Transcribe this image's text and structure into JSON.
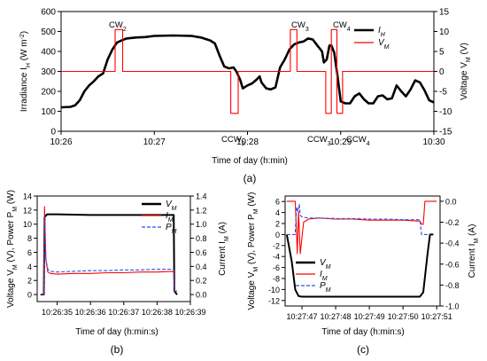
{
  "chart_data": [
    {
      "panel_label": "(a)",
      "type": "line",
      "xlabel": "Time of day (h:min)",
      "ylabel_left": [
        "Irradiance ",
        "I",
        "H",
        " (W m",
        "-2",
        ")"
      ],
      "ylabel_right": [
        "Voltage ",
        "V",
        "M",
        " (V)"
      ],
      "x_ticks": [
        "10:26",
        "10:27",
        "10:28",
        "10:29",
        "10:30"
      ],
      "x_tick_values": [
        0,
        1,
        2,
        3,
        4
      ],
      "xlim": [
        0,
        4
      ],
      "ylim_left": [
        0,
        600
      ],
      "y_left_ticks": [
        "0",
        "100",
        "200",
        "300",
        "400",
        "500",
        "600"
      ],
      "ylim_right": [
        -15,
        15
      ],
      "y_right_ticks": [
        "-15",
        "-10",
        "-5",
        "0",
        "5",
        "10",
        "15"
      ],
      "legend": {
        "position": "top-right",
        "entries": [
          {
            "main": "I",
            "sub": "H"
          },
          {
            "main": "V",
            "sub": "M"
          }
        ]
      },
      "annotations": [
        {
          "main": "CW",
          "sub": "2"
        },
        {
          "main": "CCW",
          "sub": "2"
        },
        {
          "main": "CW",
          "sub": "3"
        },
        {
          "main": "CCW",
          "sub": "3"
        },
        {
          "main": "CW",
          "sub": "4"
        },
        {
          "main": "CCW",
          "sub": "4"
        }
      ],
      "series": [
        {
          "name": "I_H",
          "color": "#000000",
          "axis": "left",
          "points": [
            [
              0.0,
              120
            ],
            [
              0.1,
              122
            ],
            [
              0.15,
              130
            ],
            [
              0.2,
              155
            ],
            [
              0.25,
              200
            ],
            [
              0.3,
              230
            ],
            [
              0.35,
              250
            ],
            [
              0.4,
              275
            ],
            [
              0.45,
              290
            ],
            [
              0.5,
              360
            ],
            [
              0.55,
              410
            ],
            [
              0.6,
              445
            ],
            [
              0.65,
              455
            ],
            [
              0.7,
              465
            ],
            [
              0.8,
              470
            ],
            [
              0.9,
              472
            ],
            [
              1.0,
              478
            ],
            [
              1.2,
              480
            ],
            [
              1.4,
              478
            ],
            [
              1.5,
              470
            ],
            [
              1.6,
              455
            ],
            [
              1.65,
              440
            ],
            [
              1.7,
              380
            ],
            [
              1.75,
              325
            ],
            [
              1.8,
              315
            ],
            [
              1.85,
              320
            ],
            [
              1.88,
              300
            ],
            [
              1.92,
              260
            ],
            [
              1.95,
              215
            ],
            [
              2.0,
              230
            ],
            [
              2.05,
              240
            ],
            [
              2.1,
              260
            ],
            [
              2.13,
              275
            ],
            [
              2.15,
              245
            ],
            [
              2.2,
              215
            ],
            [
              2.25,
              210
            ],
            [
              2.3,
              220
            ],
            [
              2.35,
              320
            ],
            [
              2.4,
              360
            ],
            [
              2.45,
              410
            ],
            [
              2.5,
              435
            ],
            [
              2.55,
              445
            ],
            [
              2.6,
              450
            ],
            [
              2.65,
              465
            ],
            [
              2.7,
              460
            ],
            [
              2.75,
              430
            ],
            [
              2.8,
              400
            ],
            [
              2.82,
              345
            ],
            [
              2.85,
              360
            ],
            [
              2.88,
              430
            ],
            [
              2.9,
              430
            ],
            [
              2.93,
              395
            ],
            [
              2.96,
              300
            ],
            [
              3.0,
              150
            ],
            [
              3.05,
              140
            ],
            [
              3.1,
              140
            ],
            [
              3.15,
              175
            ],
            [
              3.2,
              190
            ],
            [
              3.25,
              160
            ],
            [
              3.3,
              140
            ],
            [
              3.35,
              140
            ],
            [
              3.4,
              175
            ],
            [
              3.45,
              180
            ],
            [
              3.5,
              160
            ],
            [
              3.55,
              165
            ],
            [
              3.6,
              230
            ],
            [
              3.65,
              200
            ],
            [
              3.7,
              175
            ],
            [
              3.75,
              210
            ],
            [
              3.8,
              255
            ],
            [
              3.85,
              245
            ],
            [
              3.9,
              205
            ],
            [
              3.95,
              155
            ],
            [
              4.0,
              145
            ]
          ]
        },
        {
          "name": "V_M",
          "color": "#ff0000",
          "axis": "right",
          "points": [
            [
              0.0,
              0
            ],
            [
              0.58,
              0
            ],
            [
              0.58,
              10.5
            ],
            [
              0.66,
              10.5
            ],
            [
              0.66,
              0
            ],
            [
              1.82,
              0
            ],
            [
              1.82,
              -10.5
            ],
            [
              1.9,
              -10.5
            ],
            [
              1.9,
              0
            ],
            [
              2.46,
              0
            ],
            [
              2.46,
              10.5
            ],
            [
              2.53,
              10.5
            ],
            [
              2.53,
              0
            ],
            [
              2.84,
              0
            ],
            [
              2.84,
              -10.5
            ],
            [
              2.9,
              -10.5
            ],
            [
              2.9,
              10.5
            ],
            [
              2.96,
              10.5
            ],
            [
              2.96,
              -10.5
            ],
            [
              3.02,
              -10.5
            ],
            [
              3.02,
              0
            ],
            [
              4.0,
              0
            ]
          ]
        }
      ]
    },
    {
      "panel_label": "(b)",
      "type": "line",
      "xlabel": "Time of day (h:min:s)",
      "ylabel_left": [
        "Voltage ",
        "V",
        "M",
        " (V), Power ",
        "P",
        "M",
        " (W)"
      ],
      "ylabel_right": [
        "Current ",
        "I",
        "M",
        " (A)"
      ],
      "x_ticks": [
        "10:26:35",
        "10:26:36",
        "10:26:37",
        "10:26:38",
        "10:26:39"
      ],
      "x_tick_values": [
        35,
        36,
        37,
        38,
        39
      ],
      "xlim": [
        34.4,
        39.0
      ],
      "ylim_left": [
        -1,
        14
      ],
      "y_left_ticks": [
        "0",
        "2",
        "4",
        "6",
        "8",
        "10",
        "12",
        "14"
      ],
      "ylim_right": [
        -0.1,
        1.4
      ],
      "y_right_ticks": [
        "0.0",
        "0.2",
        "0.4",
        "0.6",
        "0.8",
        "1.0",
        "1.2",
        "1.4"
      ],
      "legend": {
        "position": "top-right",
        "entries": [
          {
            "main": "V",
            "sub": "M"
          },
          {
            "main": "I",
            "sub": "M"
          },
          {
            "main": "P",
            "sub": "M"
          }
        ]
      },
      "series": [
        {
          "name": "V_M",
          "color": "#000000",
          "axis": "left",
          "dash": "",
          "points": [
            [
              34.5,
              0
            ],
            [
              34.6,
              0
            ],
            [
              34.62,
              11.0
            ],
            [
              34.7,
              11.4
            ],
            [
              35.0,
              11.4
            ],
            [
              36.0,
              11.3
            ],
            [
              37.0,
              11.3
            ],
            [
              38.0,
              11.3
            ],
            [
              38.5,
              11.3
            ],
            [
              38.52,
              0.5
            ],
            [
              38.6,
              0
            ]
          ]
        },
        {
          "name": "I_M",
          "color": "#ff0000",
          "axis": "right",
          "dash": "",
          "points": [
            [
              34.5,
              0.0
            ],
            [
              34.6,
              0.0
            ],
            [
              34.62,
              1.25
            ],
            [
              34.66,
              0.5
            ],
            [
              34.72,
              0.32
            ],
            [
              34.8,
              0.3
            ],
            [
              35.0,
              0.29
            ],
            [
              35.5,
              0.3
            ],
            [
              36.0,
              0.3
            ],
            [
              36.5,
              0.31
            ],
            [
              37.0,
              0.31
            ],
            [
              37.5,
              0.32
            ],
            [
              38.0,
              0.32
            ],
            [
              38.5,
              0.33
            ],
            [
              38.52,
              0.05
            ],
            [
              38.6,
              0.05
            ]
          ]
        },
        {
          "name": "P_M",
          "color": "#3050e0",
          "axis": "left",
          "dash": "4,2",
          "points": [
            [
              34.5,
              0
            ],
            [
              34.6,
              0
            ],
            [
              34.62,
              11.5
            ],
            [
              34.66,
              5.0
            ],
            [
              34.72,
              3.6
            ],
            [
              34.8,
              3.3
            ],
            [
              35.0,
              3.2
            ],
            [
              35.5,
              3.3
            ],
            [
              36.0,
              3.4
            ],
            [
              36.5,
              3.4
            ],
            [
              37.0,
              3.5
            ],
            [
              37.5,
              3.5
            ],
            [
              38.0,
              3.6
            ],
            [
              38.5,
              3.6
            ],
            [
              38.52,
              0.5
            ],
            [
              38.6,
              0.5
            ]
          ]
        }
      ]
    },
    {
      "panel_label": "(c)",
      "type": "line",
      "xlabel": "Time of day (h:min:s)",
      "ylabel_left": [
        "Voltage ",
        "V",
        "M",
        " (V), Power ",
        "P",
        "M",
        " (W)"
      ],
      "ylabel_right": [
        "Current ",
        "I",
        "M",
        " (A)"
      ],
      "x_ticks": [
        "10:27:47",
        "10:27:48",
        "10:27:49",
        "10:27:50",
        "10:27:51"
      ],
      "x_tick_values": [
        47,
        48,
        49,
        50,
        51
      ],
      "xlim": [
        46.5,
        51.1
      ],
      "ylim_left": [
        -13,
        7
      ],
      "y_left_ticks": [
        "-12",
        "-10",
        "-8",
        "-6",
        "-4",
        "-2",
        "0",
        "2",
        "4",
        "6"
      ],
      "ylim_right": [
        -1.0,
        0.05
      ],
      "y_right_ticks": [
        "-1.0",
        "-0.8",
        "-0.6",
        "-0.4",
        "-0.2",
        "0.0"
      ],
      "legend": {
        "position": "bottom-left",
        "entries": [
          {
            "main": "V",
            "sub": "M"
          },
          {
            "main": "I",
            "sub": "M"
          },
          {
            "main": "P",
            "sub": "M"
          }
        ]
      },
      "series": [
        {
          "name": "V_M",
          "color": "#000000",
          "axis": "left",
          "dash": "",
          "points": [
            [
              46.55,
              0
            ],
            [
              46.7,
              -5
            ],
            [
              46.8,
              -10
            ],
            [
              46.9,
              -11.2
            ],
            [
              47.0,
              -11.3
            ],
            [
              48.0,
              -11.3
            ],
            [
              49.0,
              -11.3
            ],
            [
              50.0,
              -11.3
            ],
            [
              50.5,
              -11.3
            ],
            [
              50.6,
              -10.5
            ],
            [
              50.72,
              -4
            ],
            [
              50.8,
              0
            ],
            [
              50.9,
              0
            ]
          ]
        },
        {
          "name": "I_M",
          "color": "#ff0000",
          "axis": "right",
          "dash": "",
          "points": [
            [
              46.55,
              0.0
            ],
            [
              46.8,
              0.0
            ],
            [
              46.84,
              -0.3
            ],
            [
              46.86,
              -0.5
            ],
            [
              46.9,
              -0.1
            ],
            [
              46.95,
              -0.5
            ],
            [
              47.0,
              -0.35
            ],
            [
              47.05,
              -0.2
            ],
            [
              47.2,
              -0.17
            ],
            [
              47.5,
              -0.16
            ],
            [
              48.0,
              -0.17
            ],
            [
              48.5,
              -0.17
            ],
            [
              49.0,
              -0.18
            ],
            [
              49.5,
              -0.18
            ],
            [
              50.0,
              -0.18
            ],
            [
              50.5,
              -0.19
            ],
            [
              50.55,
              -0.22
            ],
            [
              50.6,
              -0.22
            ],
            [
              50.65,
              0.0
            ],
            [
              51.0,
              0.0
            ]
          ]
        },
        {
          "name": "P_M",
          "color": "#3050e0",
          "axis": "left",
          "dash": "4,2",
          "points": [
            [
              46.55,
              0
            ],
            [
              46.8,
              0
            ],
            [
              46.84,
              5.0
            ],
            [
              46.88,
              4.2
            ],
            [
              46.92,
              5.5
            ],
            [
              46.95,
              3.5
            ],
            [
              47.0,
              3.2
            ],
            [
              47.2,
              3.0
            ],
            [
              47.5,
              3.0
            ],
            [
              48.0,
              2.9
            ],
            [
              48.5,
              2.9
            ],
            [
              49.0,
              2.8
            ],
            [
              49.5,
              2.8
            ],
            [
              50.0,
              2.7
            ],
            [
              50.5,
              2.7
            ],
            [
              50.55,
              0
            ],
            [
              50.6,
              0
            ],
            [
              50.8,
              0
            ]
          ]
        }
      ]
    }
  ]
}
